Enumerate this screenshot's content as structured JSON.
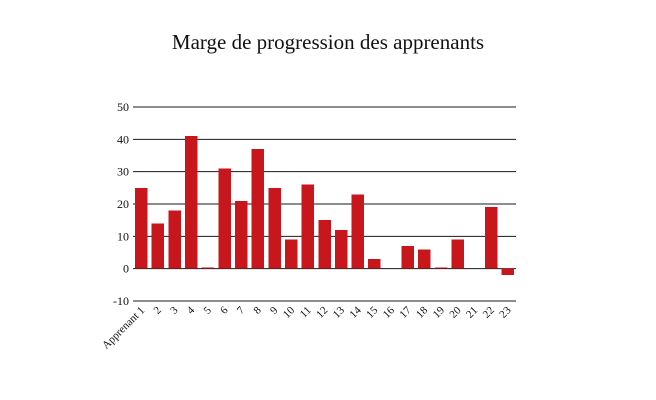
{
  "chart_data": {
    "type": "bar",
    "title": "Marge de progression des apprenants",
    "xlabel": "",
    "ylabel": "",
    "categories": [
      "Apprenant 1",
      "2",
      "3",
      "4",
      "5",
      "6",
      "7",
      "8",
      "9",
      "10",
      "11",
      "12",
      "13",
      "14",
      "15",
      "16",
      "17",
      "18",
      "19",
      "20",
      "21",
      "22",
      "23"
    ],
    "values": [
      25,
      14,
      18,
      41,
      0.3,
      31,
      21,
      37,
      25,
      9,
      26,
      15,
      12,
      23,
      3,
      0,
      7,
      6,
      0.3,
      9,
      0,
      19,
      -2
    ],
    "ylim": [
      -10,
      50
    ],
    "yticks": [
      -10,
      0,
      10,
      20,
      30,
      40,
      50
    ],
    "grid": true,
    "legend": "none",
    "bar_color": "#c8161d"
  }
}
